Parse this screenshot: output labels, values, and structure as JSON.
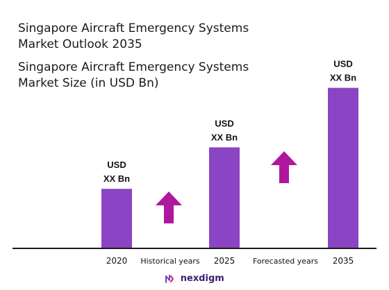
{
  "chart_data": {
    "type": "bar",
    "title": "Singapore Aircraft Emergency Systems Market Outlook 2035",
    "subtitle": "Singapore Aircraft Emergency Systems Market Size (in USD Bn)",
    "categories": [
      "2020",
      "2025",
      "2035"
    ],
    "values": [
      3.3,
      5.6,
      8.9
    ],
    "data_labels": [
      {
        "line1": "USD",
        "line2": "XX Bn"
      },
      {
        "line1": "USD",
        "line2": "XX Bn"
      },
      {
        "line1": "USD",
        "line2": "XX Bn"
      }
    ],
    "ylim": [
      0,
      10
    ],
    "grid": false,
    "bar_color": "#8a44c4",
    "segment_labels": [
      "Historical years",
      "Forecasted years"
    ],
    "arrow_color": "#b0179f"
  },
  "brand": {
    "name": "nexdigm",
    "logo_icon": "nexdigm-logo-icon"
  }
}
